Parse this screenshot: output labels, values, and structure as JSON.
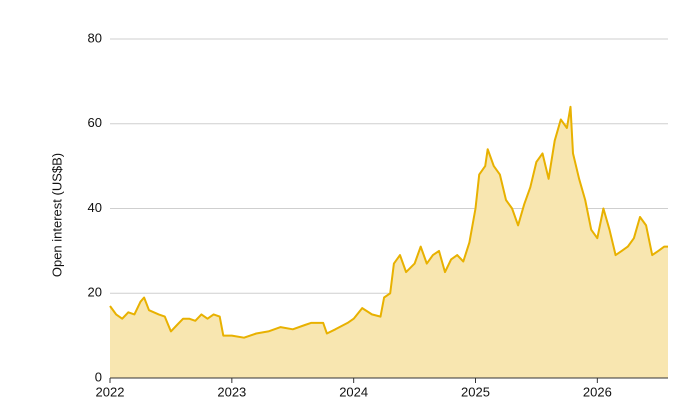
{
  "chart_data": {
    "type": "area",
    "y_label": "Open interest (US$B)",
    "x": [
      2022.0,
      2022.05,
      2022.1,
      2022.15,
      2022.2,
      2022.25,
      2022.28,
      2022.32,
      2022.4,
      2022.45,
      2022.5,
      2022.55,
      2022.6,
      2022.65,
      2022.7,
      2022.75,
      2022.8,
      2022.85,
      2022.9,
      2022.93,
      2023.0,
      2023.1,
      2023.2,
      2023.3,
      2023.4,
      2023.5,
      2023.6,
      2023.65,
      2023.75,
      2023.78,
      2023.85,
      2023.95,
      2024.0,
      2024.07,
      2024.15,
      2024.22,
      2024.25,
      2024.3,
      2024.33,
      2024.38,
      2024.43,
      2024.5,
      2024.55,
      2024.6,
      2024.65,
      2024.7,
      2024.75,
      2024.8,
      2024.85,
      2024.9,
      2024.95,
      2025.0,
      2025.03,
      2025.08,
      2025.1,
      2025.15,
      2025.2,
      2025.25,
      2025.3,
      2025.35,
      2025.4,
      2025.45,
      2025.5,
      2025.55,
      2025.6,
      2025.65,
      2025.7,
      2025.75,
      2025.78,
      2025.8,
      2025.85,
      2025.9,
      2025.95,
      2026.0,
      2026.05,
      2026.1,
      2026.15,
      2026.2,
      2026.25,
      2026.3,
      2026.35,
      2026.4,
      2026.45,
      2026.5,
      2026.55,
      2026.58
    ],
    "series": [
      {
        "name": "Open interest",
        "color": "#e8b100",
        "fill": "#f8e6b0",
        "values": [
          17,
          15,
          14,
          15.5,
          15,
          18,
          19,
          16,
          15,
          14.5,
          11,
          12.5,
          14,
          14,
          13.5,
          15,
          14,
          15,
          14.5,
          10,
          10,
          9.5,
          10.5,
          11,
          12,
          11.5,
          12.5,
          13,
          13,
          10.5,
          11.5,
          13,
          14,
          16.5,
          15,
          14.5,
          19,
          20,
          27,
          29,
          25,
          27,
          31,
          27,
          29,
          30,
          25,
          28,
          29,
          27.5,
          32,
          40,
          48,
          50,
          54,
          50,
          48,
          42,
          40,
          36,
          41,
          45,
          51,
          53,
          47,
          56,
          61,
          59,
          64,
          53,
          47,
          42,
          35,
          33,
          40,
          35,
          29,
          30,
          31,
          33,
          38,
          36,
          29,
          30,
          31,
          31
        ]
      }
    ],
    "xlim": [
      2022,
      2026.58
    ],
    "xticks": [
      2022,
      2023,
      2024,
      2025,
      2026
    ],
    "ylim": [
      0,
      80
    ],
    "yticks": [
      0,
      20,
      40,
      60,
      80
    ],
    "grid": true
  }
}
